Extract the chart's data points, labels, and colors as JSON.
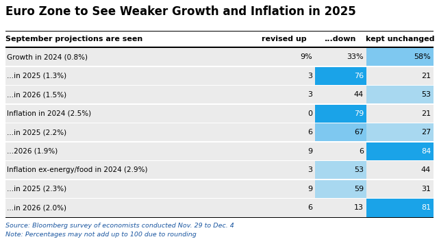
{
  "title": "Euro Zone to See Weaker Growth and Inflation in 2025",
  "col_header": [
    "revised up",
    "...down",
    "kept unchanged"
  ],
  "row_labels": [
    "Growth in 2024 (0.8%)",
    "...in 2025 (1.3%)",
    "...in 2026 (1.5%)",
    "Inflation in 2024 (2.5%)",
    "...in 2025 (2.2%)",
    "...2026 (1.9%)",
    "Inflation ex-energy/food in 2024 (2.9%)",
    "...in 2025 (2.3%)",
    "...in 2026 (2.0%)"
  ],
  "display_values": [
    [
      "9%",
      "33%",
      "58%"
    ],
    [
      "3",
      "76",
      "21"
    ],
    [
      "3",
      "44",
      "53"
    ],
    [
      "0",
      "79",
      "21"
    ],
    [
      "6",
      "67",
      "27"
    ],
    [
      "9",
      "6",
      "84"
    ],
    [
      "3",
      "53",
      "44"
    ],
    [
      "9",
      "59",
      "31"
    ],
    [
      "6",
      "13",
      "81"
    ]
  ],
  "cell_colors": [
    [
      "#ebebeb",
      "#ebebeb",
      "#7ec8f0"
    ],
    [
      "#ebebeb",
      "#1aa3e8",
      "#ebebeb"
    ],
    [
      "#ebebeb",
      "#ebebeb",
      "#a8d8f0"
    ],
    [
      "#ebebeb",
      "#1aa3e8",
      "#ebebeb"
    ],
    [
      "#ebebeb",
      "#7ec8f0",
      "#a8d8f0"
    ],
    [
      "#ebebeb",
      "#ebebeb",
      "#1aa3e8"
    ],
    [
      "#ebebeb",
      "#a8d8f0",
      "#ebebeb"
    ],
    [
      "#ebebeb",
      "#a8d8f0",
      "#ebebeb"
    ],
    [
      "#ebebeb",
      "#ebebeb",
      "#1aa3e8"
    ]
  ],
  "text_colors": [
    [
      "#000000",
      "#000000",
      "#000000"
    ],
    [
      "#000000",
      "#ffffff",
      "#000000"
    ],
    [
      "#000000",
      "#000000",
      "#000000"
    ],
    [
      "#000000",
      "#ffffff",
      "#000000"
    ],
    [
      "#000000",
      "#000000",
      "#000000"
    ],
    [
      "#000000",
      "#000000",
      "#ffffff"
    ],
    [
      "#000000",
      "#000000",
      "#000000"
    ],
    [
      "#000000",
      "#000000",
      "#000000"
    ],
    [
      "#000000",
      "#000000",
      "#ffffff"
    ]
  ],
  "subheader": "September projections are seen",
  "footnote1": "Source: Bloomberg survey of economists conducted Nov. 29 to Dec. 4",
  "footnote2": "Note: Percentages may not add up to 100 due to rounding",
  "bg_color": "#ffffff",
  "label_bg": "#ebebeb",
  "fig_width": 6.41,
  "fig_height": 3.62,
  "dpi": 100
}
